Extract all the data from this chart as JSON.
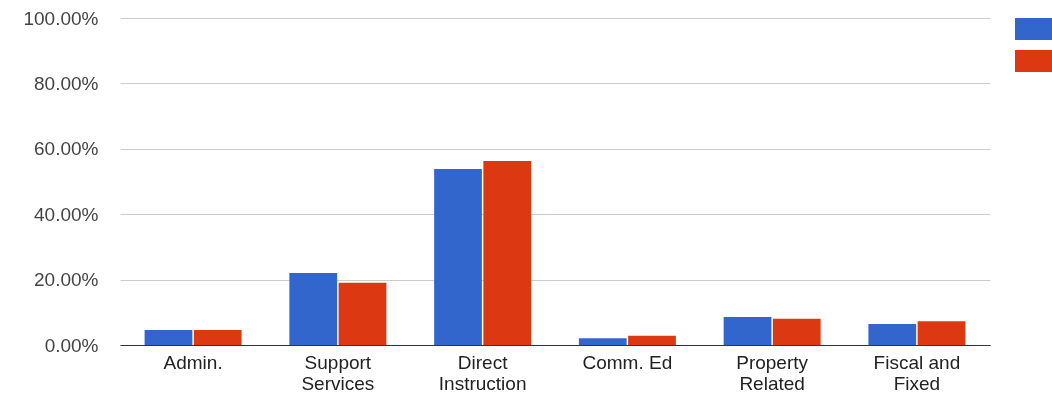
{
  "chart_data": {
    "type": "bar",
    "categories": [
      "Admin.",
      "Support Services",
      "Direct Instruction",
      "Comm. Ed",
      "Property Related",
      "Fiscal and Fixed"
    ],
    "series": [
      {
        "color": "#3366cc",
        "values": [
          4.6,
          22.0,
          53.8,
          2.1,
          8.6,
          6.4
        ]
      },
      {
        "color": "#dc3912",
        "values": [
          4.6,
          19.0,
          56.3,
          2.8,
          8.0,
          7.3
        ]
      }
    ],
    "ylim": [
      0,
      100
    ],
    "yticks": [
      {
        "value": 0,
        "label": "0.00%"
      },
      {
        "value": 20,
        "label": "20.00%"
      },
      {
        "value": 40,
        "label": "40.00%"
      },
      {
        "value": 60,
        "label": "60.00%"
      },
      {
        "value": 80,
        "label": "80.00%"
      },
      {
        "value": 100,
        "label": "100.00%"
      }
    ],
    "grid": "y"
  }
}
